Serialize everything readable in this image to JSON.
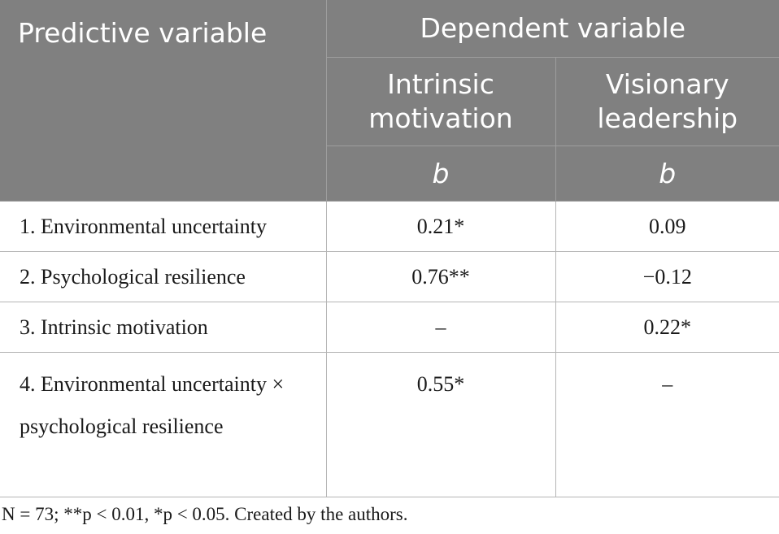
{
  "table": {
    "header": {
      "predictive_variable": "Predictive variable",
      "dependent_variable": "Dependent variable",
      "col_intrinsic": "Intrinsic motivation",
      "col_visionary": "Visionary leadership",
      "stat_intrinsic": "b",
      "stat_visionary": "b"
    },
    "rows": [
      {
        "label": "1. Environmental uncertainty",
        "intrinsic": "0.21*",
        "visionary": "0.09"
      },
      {
        "label": "2. Psychological resilience",
        "intrinsic": "0.76**",
        "visionary": "−0.12"
      },
      {
        "label": "3. Intrinsic motivation",
        "intrinsic": "–",
        "visionary": "0.22*"
      },
      {
        "label": "4. Environmental uncertainty × psychological resilience",
        "intrinsic": "0.55*",
        "visionary": "–"
      }
    ]
  },
  "footnote": "N = 73; **p < 0.01, *p < 0.05. Created by the authors."
}
